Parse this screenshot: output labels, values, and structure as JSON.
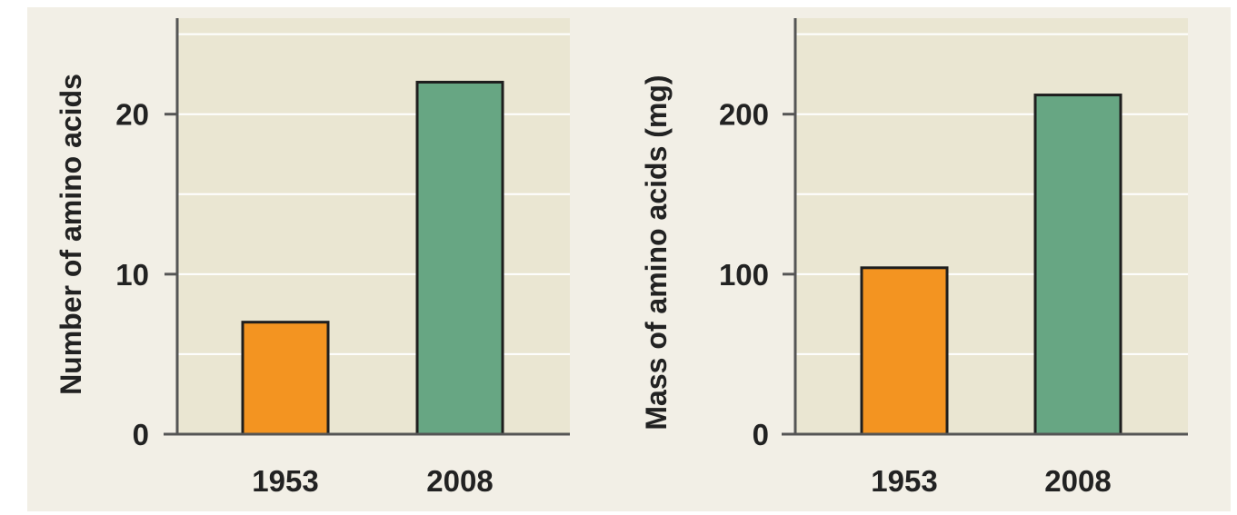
{
  "colors": {
    "page_background": "#f2efe6",
    "plot_background": "#eae6d2",
    "gridline": "#ffffff",
    "axis": "#555555",
    "bar_1953": "#f39421",
    "bar_2008": "#67a683",
    "bar_outline": "#1e1e1e"
  },
  "chart_data": [
    {
      "type": "bar",
      "categories": [
        "1953",
        "2008"
      ],
      "values": [
        7,
        22
      ],
      "title": "",
      "xlabel": "",
      "ylabel": "Number of amino acids",
      "ylim": [
        0,
        26
      ],
      "yticks": [
        0,
        10,
        20
      ],
      "grid": true
    },
    {
      "type": "bar",
      "categories": [
        "1953",
        "2008"
      ],
      "values": [
        104,
        212
      ],
      "title": "",
      "xlabel": "",
      "ylabel": "Mass of amino acids (mg)",
      "ylim": [
        0,
        260
      ],
      "yticks": [
        0,
        100,
        200
      ],
      "grid": true
    }
  ]
}
